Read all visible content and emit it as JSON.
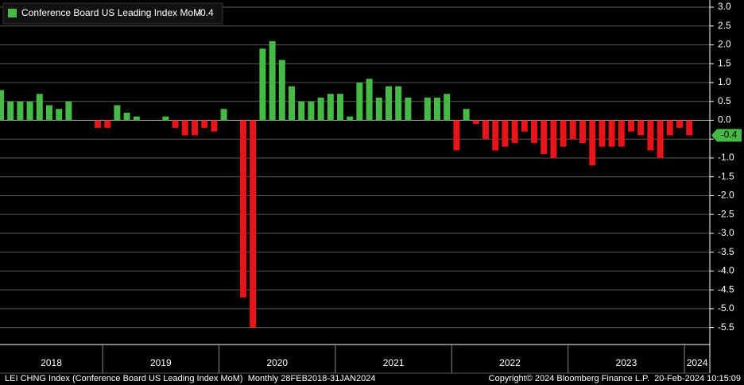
{
  "chart_data": {
    "type": "bar",
    "series": [
      {
        "name": "Conference Board US Leading Index MoM",
        "positive_color": "#46b946",
        "negative_color": "#e8141a",
        "values": [
          0.8,
          0.5,
          0.5,
          0.5,
          0.7,
          0.4,
          0.3,
          0.5,
          0.0,
          0.0,
          -0.2,
          -0.2,
          0.4,
          0.2,
          0.1,
          0.0,
          0.0,
          0.1,
          -0.2,
          -0.4,
          -0.4,
          -0.2,
          -0.3,
          0.3,
          0.0,
          -4.7,
          -5.5,
          1.9,
          2.1,
          1.6,
          0.9,
          0.5,
          0.5,
          0.6,
          0.7,
          0.7,
          0.1,
          1.0,
          1.1,
          0.6,
          0.9,
          0.9,
          0.6,
          0.0,
          0.6,
          0.6,
          0.7,
          -0.8,
          0.3,
          -0.1,
          -0.5,
          -0.8,
          -0.7,
          -0.6,
          -0.3,
          -0.6,
          -0.9,
          -1.0,
          -0.7,
          -0.5,
          -0.6,
          -1.2,
          -0.7,
          -0.7,
          -0.7,
          -0.3,
          -0.4,
          -0.8,
          -1.0,
          -0.4,
          -0.2,
          -0.4
        ]
      }
    ],
    "year_labels": [
      "2018",
      "2019",
      "2020",
      "2021",
      "2022",
      "2023",
      "2024"
    ],
    "ylim": [
      -5.95,
      3.19
    ],
    "yticks": [
      {
        "value": 3,
        "label": "3.0"
      },
      2.5,
      {
        "value": 2,
        "label": "2.0"
      },
      1.5,
      {
        "value": 1,
        "label": "1.0"
      },
      0.5,
      {
        "value": 0,
        "label": "0.0"
      },
      -0.5,
      {
        "value": -1,
        "label": "-1.0"
      },
      -1.5,
      {
        "value": -2,
        "label": "-2.0"
      },
      -2.5,
      {
        "value": -3,
        "label": "-3.0"
      },
      -3.5,
      {
        "value": -4,
        "label": "-4.0"
      },
      -4.5,
      {
        "value": -5,
        "label": "-5.0"
      },
      -5.5
    ],
    "grid": true,
    "footer_left": "LEI CHNG Index (Conference Board US Leading Index MoM)  Monthly 28FEB2018-31JAN2024",
    "footer_right": "Copyright© 2024 Bloomberg Finance L.P.  20-Feb-2024 10:15:09"
  }
}
